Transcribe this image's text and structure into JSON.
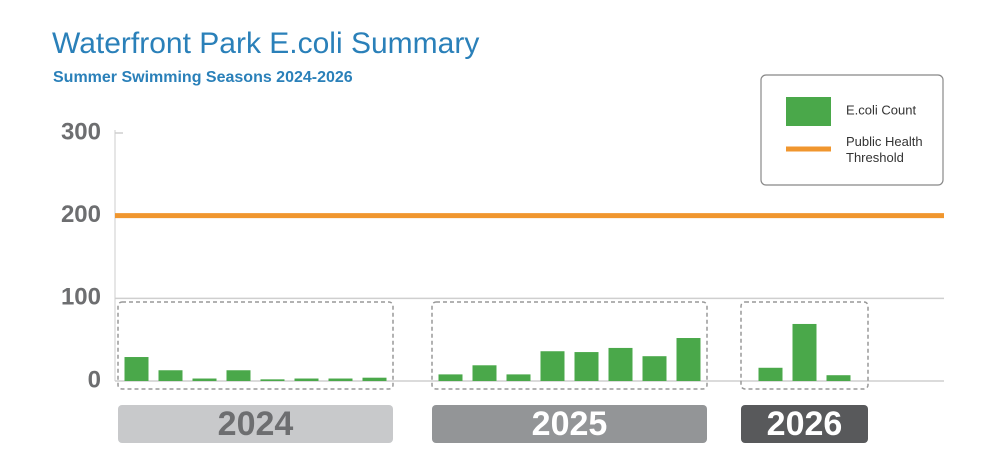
{
  "chart_data": {
    "type": "bar",
    "title": "Waterfront Park E.coli Summary",
    "subtitle": "Summer Swimming Seasons 2024-2026",
    "series_name": "E.coli Count",
    "color": "#4aa84a",
    "groups": [
      {
        "label": "2024",
        "values": [
          29,
          13,
          3,
          13,
          2,
          3,
          3,
          4
        ]
      },
      {
        "label": "2025",
        "values": [
          8,
          19,
          8,
          36,
          35,
          40,
          30,
          52
        ]
      },
      {
        "label": "2026",
        "values": [
          16,
          69,
          7
        ]
      }
    ],
    "threshold": {
      "name": "Public Health Threshold",
      "value": 200,
      "color": "#f0962e"
    },
    "ylim": [
      0,
      300
    ],
    "yticks": [
      0,
      100,
      200,
      300
    ],
    "grid": true
  }
}
